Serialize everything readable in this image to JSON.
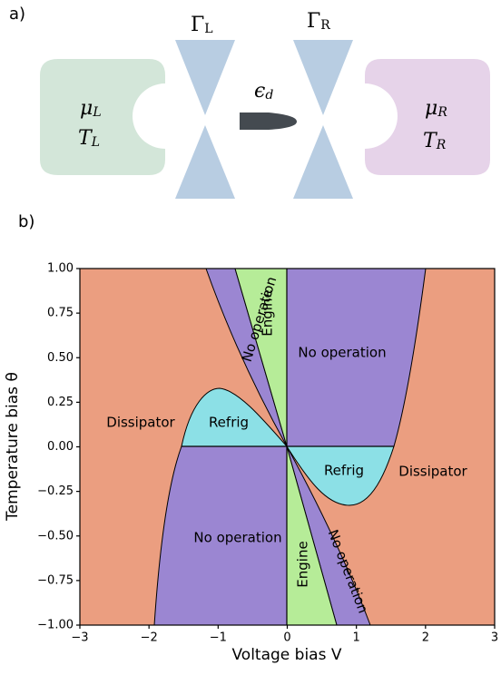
{
  "panels": {
    "a": "a)",
    "b": "b)"
  },
  "schematic": {
    "gamma_left": {
      "symbol": "Γ",
      "sub": "L"
    },
    "gamma_right": {
      "symbol": "Γ",
      "sub": "R"
    },
    "dot_level": {
      "symbol": "ϵ",
      "sub": "d"
    },
    "left_lead": {
      "mu": {
        "symbol": "μ",
        "sub": "L"
      },
      "temp": {
        "symbol": "T",
        "sub": "L"
      }
    },
    "right_lead": {
      "mu": {
        "symbol": "μ",
        "sub": "R"
      },
      "temp": {
        "symbol": "T",
        "sub": "R"
      }
    }
  },
  "chart_data": {
    "type": "phase",
    "x_label": "Voltage bias V",
    "y_label": "Temperature bias θ",
    "xlim": [
      -3,
      3
    ],
    "ylim": [
      -1,
      1
    ],
    "xticks": [
      {
        "value": -3,
        "label": "−3"
      },
      {
        "value": -2,
        "label": "−2"
      },
      {
        "value": -1,
        "label": "−1"
      },
      0,
      1,
      2,
      3
    ],
    "yticks": [
      {
        "value": -1,
        "label": "−1.00"
      },
      {
        "value": -0.75,
        "label": "−0.75"
      },
      {
        "value": -0.5,
        "label": "−0.50"
      },
      {
        "value": -0.25,
        "label": "−0.25"
      },
      {
        "value": 0,
        "label": "0.00"
      },
      0.25,
      {
        "value": 0.5,
        "label": "0.50"
      },
      0.75,
      {
        "value": 1,
        "label": "1.00"
      }
    ],
    "regions": [
      "Dissipator",
      "Refrig",
      "Engine",
      "No operation",
      "No operation",
      "Refrig",
      "Dissipator",
      "No operation",
      "Engine",
      "No operation"
    ],
    "colors": {
      "dissipator": "#eb9e80",
      "refrig": "#8ce0e6",
      "engine": "#b6ec98",
      "no_operation": "#9b86d2"
    }
  }
}
